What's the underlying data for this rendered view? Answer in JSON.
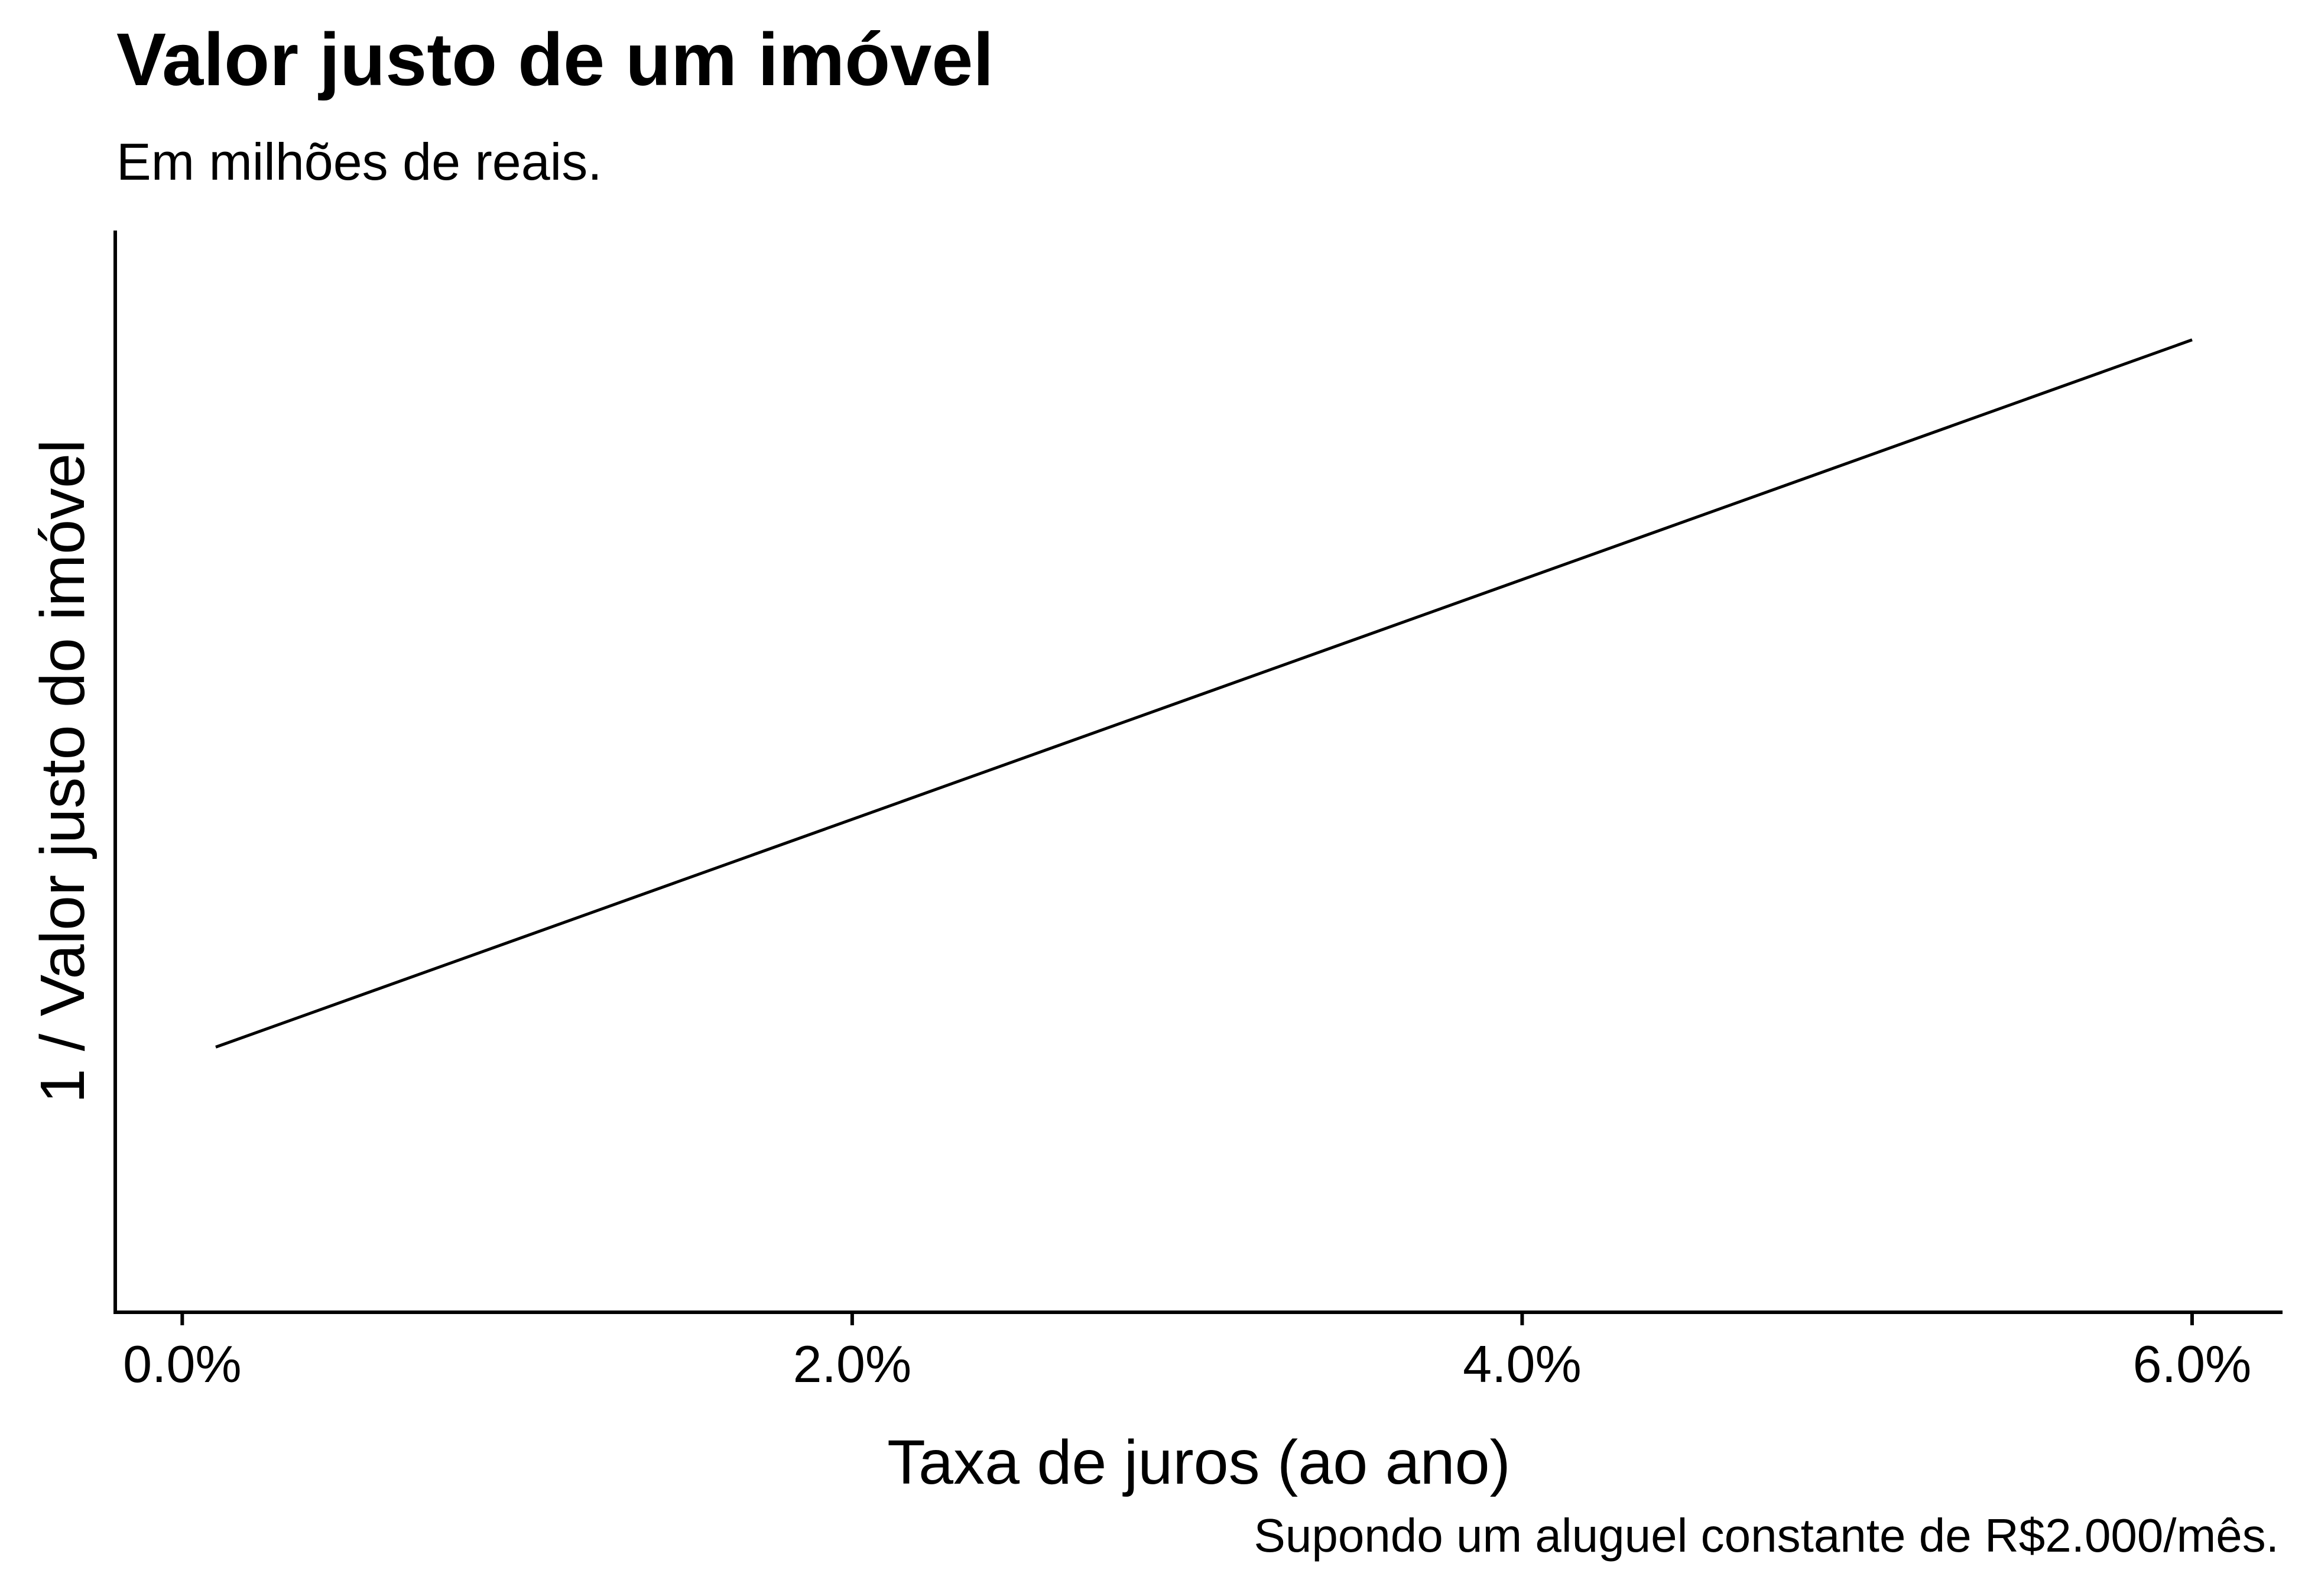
{
  "chart_data": {
    "type": "line",
    "title": "Valor justo de um imóvel",
    "subtitle": "Em milhões de reais.",
    "xlabel": "Taxa de juros (ao ano)",
    "ylabel": "1 / Valor justo do imóvel",
    "caption": "Supondo um aluguel constante de R$2.000/mês.",
    "x_ticks": [
      {
        "value": 0.0,
        "label": "0.0%"
      },
      {
        "value": 0.02,
        "label": "2.0%"
      },
      {
        "value": 0.04,
        "label": "4.0%"
      },
      {
        "value": 0.06,
        "label": "6.0%"
      }
    ],
    "xlim": [
      -0.002,
      0.0627
    ],
    "y_ticks": [],
    "grid": false,
    "series": [
      {
        "x": [
          0.001,
          0.06
        ],
        "y": [
          0.0417,
          2.5
        ]
      }
    ],
    "ylim": [
      -0.88,
      2.88
    ],
    "line_color": "#000000"
  }
}
